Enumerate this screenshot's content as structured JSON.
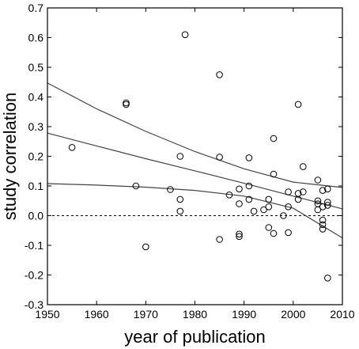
{
  "chart_data": {
    "type": "scatter",
    "xlabel": "year of publication",
    "ylabel": "study correlation",
    "xlim": [
      1950,
      2010
    ],
    "ylim": [
      -0.3,
      0.7
    ],
    "xticks": [
      1950,
      1960,
      1970,
      1980,
      1990,
      2000,
      2010
    ],
    "yticks": [
      -0.3,
      -0.2,
      -0.1,
      0.0,
      0.1,
      0.2,
      0.3,
      0.4,
      0.5,
      0.6,
      0.7
    ],
    "ytick_labels": [
      "-0.3",
      "-0.2",
      "-0.1",
      "0.0",
      "0.1",
      "0.2",
      "0.3",
      "0.4",
      "0.5",
      "0.6",
      "0.7"
    ],
    "reference_line_y": 0.0,
    "points": [
      [
        1955,
        0.23
      ],
      [
        1966,
        0.38
      ],
      [
        1966,
        0.375
      ],
      [
        1968,
        0.1
      ],
      [
        1970,
        -0.105
      ],
      [
        1975,
        0.088
      ],
      [
        1977,
        0.2
      ],
      [
        1977,
        0.055
      ],
      [
        1977,
        0.015
      ],
      [
        1978,
        0.61
      ],
      [
        1985,
        0.475
      ],
      [
        1985,
        0.197
      ],
      [
        1985,
        -0.08
      ],
      [
        1987,
        0.07
      ],
      [
        1989,
        0.09
      ],
      [
        1989,
        0.04
      ],
      [
        1989,
        -0.062
      ],
      [
        1989,
        -0.07
      ],
      [
        1991,
        0.195
      ],
      [
        1991,
        0.1
      ],
      [
        1991,
        0.055
      ],
      [
        1992,
        0.015
      ],
      [
        1994,
        0.02
      ],
      [
        1995,
        0.055
      ],
      [
        1995,
        0.03
      ],
      [
        1995,
        -0.04
      ],
      [
        1996,
        0.26
      ],
      [
        1996,
        0.14
      ],
      [
        1996,
        -0.06
      ],
      [
        1998,
        0.0
      ],
      [
        1999,
        0.08
      ],
      [
        1999,
        0.03
      ],
      [
        1999,
        -0.057
      ],
      [
        2001,
        0.375
      ],
      [
        2001,
        0.075
      ],
      [
        2001,
        0.055
      ],
      [
        2002,
        0.165
      ],
      [
        2002,
        0.08
      ],
      [
        2005,
        0.12
      ],
      [
        2005,
        0.05
      ],
      [
        2005,
        0.04
      ],
      [
        2005,
        0.02
      ],
      [
        2006,
        0.085
      ],
      [
        2006,
        0.03
      ],
      [
        2006,
        -0.015
      ],
      [
        2006,
        -0.03
      ],
      [
        2006,
        -0.045
      ],
      [
        2007,
        0.09
      ],
      [
        2007,
        0.045
      ],
      [
        2007,
        0.035
      ],
      [
        2007,
        -0.21
      ]
    ],
    "curves": [
      {
        "x": [
          1950,
          1960,
          1970,
          1980,
          1990,
          2000,
          2010
        ],
        "y": [
          0.447,
          0.36,
          0.284,
          0.216,
          0.158,
          0.113,
          0.095
        ]
      },
      {
        "x": [
          1950,
          1960,
          1970,
          1980,
          1990,
          2000,
          2010
        ],
        "y": [
          0.278,
          0.235,
          0.192,
          0.151,
          0.109,
          0.066,
          0.023
        ]
      },
      {
        "x": [
          1950,
          1960,
          1970,
          1980,
          1990,
          2000,
          2010
        ],
        "y": [
          0.108,
          0.103,
          0.096,
          0.085,
          0.066,
          0.025,
          -0.075
        ]
      }
    ]
  }
}
